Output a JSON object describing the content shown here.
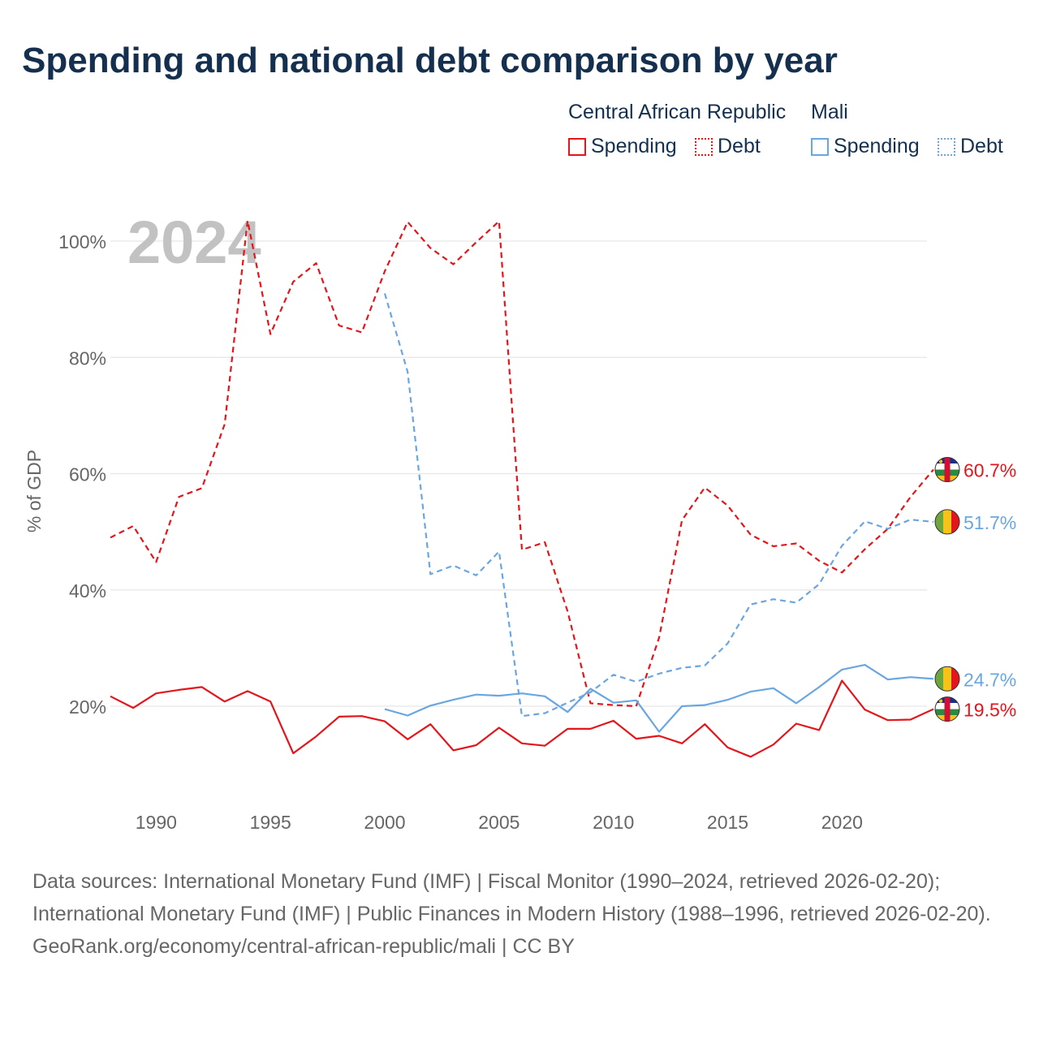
{
  "title": "Spending and national debt comparison by year",
  "legend": {
    "groups": [
      {
        "name": "Central African Republic",
        "items": [
          {
            "label": "Spending"
          },
          {
            "label": "Debt"
          }
        ]
      },
      {
        "name": "Mali",
        "items": [
          {
            "label": "Spending"
          },
          {
            "label": "Debt"
          }
        ]
      }
    ]
  },
  "colors": {
    "car": "#e3161c",
    "mali": "#6aa7e0",
    "grid": "#e6e6e6",
    "axis_text": "#666666",
    "watermark": "#c2c2c2"
  },
  "chart_data": {
    "type": "line",
    "year_watermark": "2024",
    "ylabel": "% of GDP",
    "xlim": [
      1988,
      2024
    ],
    "ylim": [
      0,
      105
    ],
    "xticks": [
      1990,
      1995,
      2000,
      2005,
      2010,
      2015,
      2020
    ],
    "yticks": [
      20,
      40,
      60,
      80,
      100
    ],
    "ytick_labels": [
      "20%",
      "40%",
      "60%",
      "80%",
      "100%"
    ],
    "series": [
      {
        "name": "Central African Republic Debt",
        "country": "car",
        "style": "dashed",
        "x": [
          1988,
          1989,
          1990,
          1991,
          1992,
          1993,
          1994,
          1995,
          1996,
          1997,
          1998,
          1999,
          2000,
          2001,
          2002,
          2003,
          2004,
          2005,
          2006,
          2007,
          2008,
          2009,
          2010,
          2011,
          2012,
          2013,
          2014,
          2015,
          2016,
          2017,
          2018,
          2019,
          2020,
          2021,
          2022,
          2023,
          2024
        ],
        "values": [
          49,
          51,
          44.8,
          56,
          57.5,
          68.5,
          103.5,
          84,
          93,
          96.2,
          85.5,
          84.3,
          94.8,
          103.3,
          98.8,
          96,
          99.8,
          103.4,
          46.9,
          48.2,
          36.3,
          20.5,
          20.2,
          20,
          31.8,
          52,
          57.6,
          54.5,
          49.5,
          47.5,
          48,
          45,
          43,
          47,
          50.5,
          56,
          60.7
        ],
        "end_label": "60.7%"
      },
      {
        "name": "Mali Debt",
        "country": "mali",
        "style": "dashed",
        "x": [
          2000,
          2001,
          2002,
          2003,
          2004,
          2005,
          2006,
          2007,
          2008,
          2009,
          2010,
          2011,
          2012,
          2013,
          2014,
          2015,
          2016,
          2017,
          2018,
          2019,
          2020,
          2021,
          2022,
          2023,
          2024
        ],
        "values": [
          91,
          77.5,
          42.7,
          44.2,
          42.5,
          46.6,
          18.3,
          18.8,
          20.6,
          22.4,
          25.4,
          24.2,
          25.6,
          26.6,
          27,
          30.8,
          37.5,
          38.4,
          37.8,
          41,
          47.6,
          51.8,
          50.5,
          52.1,
          51.7
        ],
        "end_label": "51.7%"
      },
      {
        "name": "Mali Spending",
        "country": "mali",
        "style": "solid",
        "x": [
          2000,
          2001,
          2002,
          2003,
          2004,
          2005,
          2006,
          2007,
          2008,
          2009,
          2010,
          2011,
          2012,
          2013,
          2014,
          2015,
          2016,
          2017,
          2018,
          2019,
          2020,
          2021,
          2022,
          2023,
          2024
        ],
        "values": [
          19.5,
          18.4,
          20.1,
          21.1,
          22,
          21.8,
          22.2,
          21.7,
          19,
          23,
          20.6,
          21,
          15.6,
          20,
          20.2,
          21.1,
          22.5,
          23.1,
          20.5,
          23.3,
          26.3,
          27.1,
          24.6,
          25,
          24.7
        ],
        "end_label": "24.7%"
      },
      {
        "name": "Central African Republic Spending",
        "country": "car",
        "style": "solid",
        "x": [
          1988,
          1989,
          1990,
          1991,
          1992,
          1993,
          1994,
          1995,
          1996,
          1997,
          1998,
          1999,
          2000,
          2001,
          2002,
          2003,
          2004,
          2005,
          2006,
          2007,
          2008,
          2009,
          2010,
          2011,
          2012,
          2013,
          2014,
          2015,
          2016,
          2017,
          2018,
          2019,
          2020,
          2021,
          2022,
          2023,
          2024
        ],
        "values": [
          21.7,
          19.7,
          22.2,
          22.8,
          23.3,
          20.8,
          22.6,
          20.8,
          11.9,
          14.8,
          18.2,
          18.3,
          17.4,
          14.3,
          16.9,
          12.4,
          13.3,
          16.3,
          13.6,
          13.2,
          16.1,
          16.1,
          17.5,
          14.4,
          14.9,
          13.6,
          16.9,
          12.9,
          11.3,
          13.4,
          17,
          15.9,
          24.4,
          19.4,
          17.6,
          17.7,
          19.5
        ],
        "end_label": "19.5%"
      }
    ]
  },
  "footer": {
    "sources": "Data sources: International Monetary Fund (IMF) | Fiscal Monitor (1990–2024, retrieved 2026-02-20); International Monetary Fund (IMF) | Public Finances in Modern History (1988–1996, retrieved 2026-02-20).",
    "credit": "GeoRank.org/economy/central-african-republic/mali | CC BY"
  }
}
